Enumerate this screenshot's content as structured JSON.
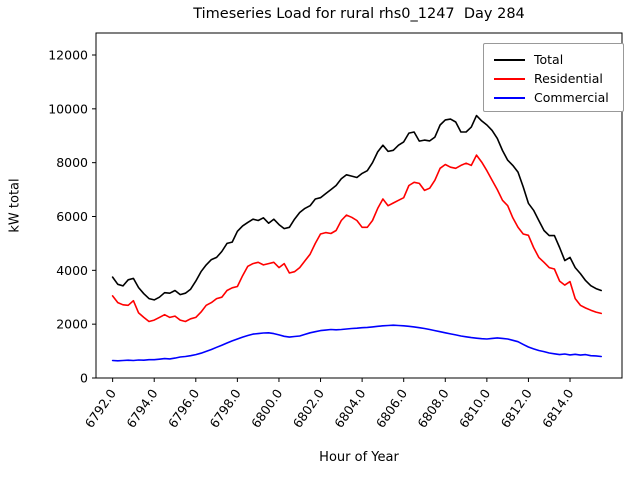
{
  "chart_data": {
    "type": "line",
    "title": "Timeseries Load for rural rhs0_1247  Day 284",
    "xlabel": "Hour of Year",
    "ylabel": "kW total",
    "xlim": [
      6791.2,
      6816.5
    ],
    "ylim": [
      0,
      12817
    ],
    "grid": false,
    "legend_position": "upper right",
    "xtick_labels": [
      "6792.0",
      "6794.0",
      "6796.0",
      "6798.0",
      "6800.0",
      "6802.0",
      "6804.0",
      "6806.0",
      "6808.0",
      "6810.0",
      "6812.0",
      "6814.0"
    ],
    "xticks": [
      6792,
      6794,
      6796,
      6798,
      6800,
      6802,
      6804,
      6806,
      6808,
      6810,
      6812,
      6814
    ],
    "ytick_labels": [
      "0",
      "2000",
      "4000",
      "6000",
      "8000",
      "10000",
      "12000"
    ],
    "yticks": [
      0,
      2000,
      4000,
      6000,
      8000,
      10000,
      12000
    ],
    "x": [
      6792.0,
      6792.25,
      6792.5,
      6792.75,
      6793.0,
      6793.25,
      6793.5,
      6793.75,
      6794.0,
      6794.25,
      6794.5,
      6794.75,
      6795.0,
      6795.25,
      6795.5,
      6795.75,
      6796.0,
      6796.25,
      6796.5,
      6796.75,
      6797.0,
      6797.25,
      6797.5,
      6797.75,
      6798.0,
      6798.25,
      6798.5,
      6798.75,
      6799.0,
      6799.25,
      6799.5,
      6799.75,
      6800.0,
      6800.25,
      6800.5,
      6800.75,
      6801.0,
      6801.25,
      6801.5,
      6801.75,
      6802.0,
      6802.25,
      6802.5,
      6802.75,
      6803.0,
      6803.25,
      6803.5,
      6803.75,
      6804.0,
      6804.25,
      6804.5,
      6804.75,
      6805.0,
      6805.25,
      6805.5,
      6805.75,
      6806.0,
      6806.25,
      6806.5,
      6806.75,
      6807.0,
      6807.25,
      6807.5,
      6807.75,
      6808.0,
      6808.25,
      6808.5,
      6808.75,
      6809.0,
      6809.25,
      6809.5,
      6809.75,
      6810.0,
      6810.25,
      6810.5,
      6810.75,
      6811.0,
      6811.25,
      6811.5,
      6811.75,
      6812.0,
      6812.25,
      6812.5,
      6812.75,
      6813.0,
      6813.25,
      6813.5,
      6813.75,
      6814.0,
      6814.25,
      6814.5,
      6814.75,
      6815.0,
      6815.25,
      6815.5
    ],
    "series": [
      {
        "name": "Total",
        "color": "#000000",
        "values": [
          3750,
          3480,
          3420,
          3650,
          3700,
          3360,
          3130,
          2950,
          2900,
          3000,
          3170,
          3150,
          3250,
          3100,
          3150,
          3300,
          3600,
          3950,
          4200,
          4400,
          4480,
          4700,
          5000,
          5050,
          5450,
          5650,
          5780,
          5900,
          5850,
          5950,
          5750,
          5900,
          5700,
          5550,
          5600,
          5900,
          6150,
          6300,
          6400,
          6650,
          6700,
          6850,
          7000,
          7150,
          7400,
          7550,
          7500,
          7450,
          7600,
          7700,
          8000,
          8400,
          8650,
          8420,
          8460,
          8650,
          8770,
          9100,
          9140,
          8800,
          8840,
          8810,
          8950,
          9400,
          9590,
          9620,
          9510,
          9140,
          9140,
          9320,
          9750,
          9550,
          9400,
          9200,
          8900,
          8450,
          8090,
          7900,
          7650,
          7100,
          6490,
          6230,
          5850,
          5480,
          5290,
          5290,
          4850,
          4360,
          4480,
          4100,
          3880,
          3620,
          3430,
          3320,
          3250
        ]
      },
      {
        "name": "Residential",
        "color": "#ff0000",
        "values": [
          3050,
          2800,
          2720,
          2700,
          2870,
          2420,
          2250,
          2100,
          2150,
          2250,
          2350,
          2250,
          2300,
          2150,
          2100,
          2200,
          2250,
          2450,
          2700,
          2800,
          2950,
          3000,
          3250,
          3350,
          3400,
          3800,
          4150,
          4250,
          4300,
          4200,
          4250,
          4300,
          4100,
          4250,
          3900,
          3950,
          4100,
          4350,
          4600,
          5000,
          5350,
          5400,
          5370,
          5480,
          5850,
          6050,
          5970,
          5850,
          5600,
          5600,
          5850,
          6300,
          6650,
          6400,
          6500,
          6600,
          6700,
          7150,
          7270,
          7230,
          6970,
          7050,
          7350,
          7790,
          7930,
          7830,
          7790,
          7900,
          7980,
          7900,
          8280,
          8020,
          7700,
          7350,
          7000,
          6600,
          6400,
          5950,
          5600,
          5350,
          5300,
          4850,
          4480,
          4300,
          4100,
          4050,
          3600,
          3450,
          3580,
          2950,
          2700,
          2600,
          2520,
          2450,
          2400
        ]
      },
      {
        "name": "Commercial",
        "color": "#0000ff",
        "values": [
          650,
          640,
          650,
          660,
          650,
          670,
          660,
          680,
          680,
          700,
          720,
          710,
          740,
          780,
          800,
          830,
          870,
          920,
          990,
          1060,
          1140,
          1220,
          1300,
          1380,
          1450,
          1520,
          1580,
          1630,
          1650,
          1670,
          1680,
          1650,
          1600,
          1550,
          1520,
          1540,
          1560,
          1620,
          1680,
          1720,
          1760,
          1780,
          1800,
          1790,
          1800,
          1820,
          1840,
          1850,
          1870,
          1880,
          1900,
          1920,
          1940,
          1950,
          1960,
          1950,
          1940,
          1920,
          1900,
          1870,
          1840,
          1800,
          1760,
          1720,
          1680,
          1640,
          1600,
          1560,
          1530,
          1500,
          1480,
          1460,
          1450,
          1470,
          1490,
          1470,
          1450,
          1400,
          1350,
          1250,
          1150,
          1080,
          1020,
          980,
          930,
          900,
          870,
          890,
          860,
          880,
          850,
          870,
          830,
          820,
          800
        ]
      }
    ]
  }
}
